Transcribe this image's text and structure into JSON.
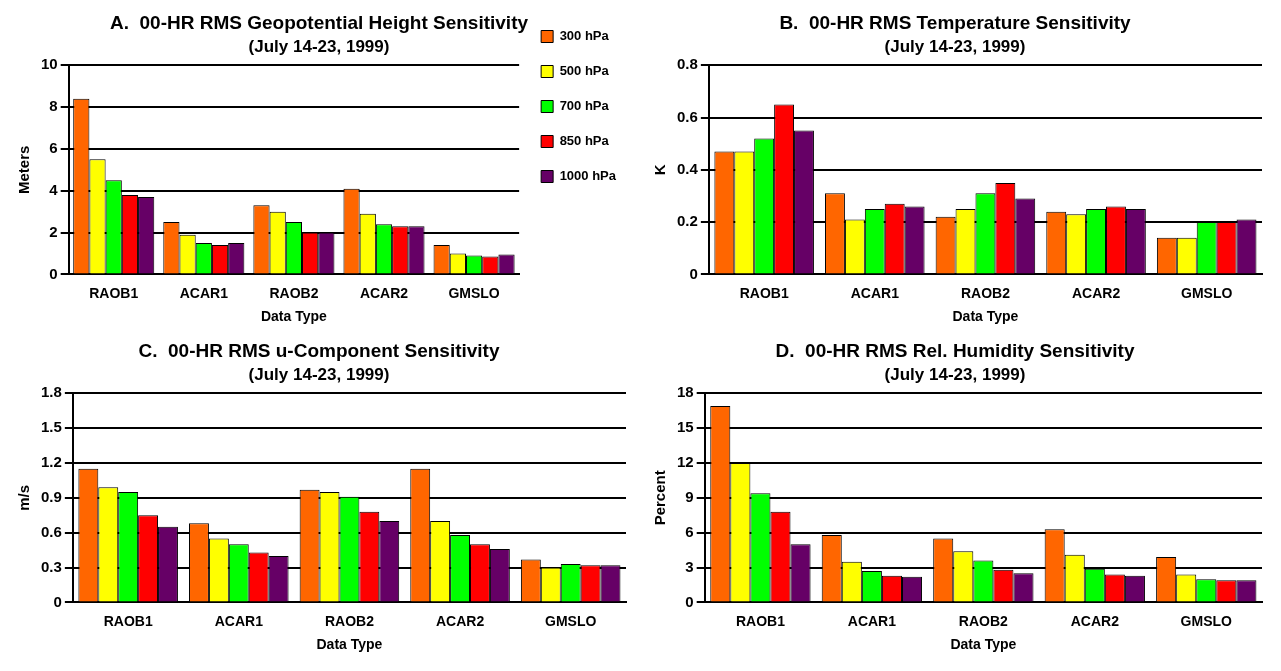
{
  "chart_data": [
    {
      "type": "bar",
      "title": "A.  00-HR RMS Geopotential Height Sensitivity",
      "subtitle": "(July 14-23, 1999)",
      "xlabel": "Data Type",
      "ylabel": "Meters",
      "categories": [
        "RAOB1",
        "ACAR1",
        "RAOB2",
        "ACAR2",
        "GMSLO"
      ],
      "series": [
        {
          "name": "300 hPa",
          "color": "#ff6600",
          "values": [
            8.4,
            2.5,
            3.3,
            4.1,
            1.4
          ]
        },
        {
          "name": "500 hPa",
          "color": "#ffff00",
          "values": [
            5.5,
            1.9,
            3.0,
            2.9,
            1.0
          ]
        },
        {
          "name": "700 hPa",
          "color": "#00ff00",
          "values": [
            4.5,
            1.5,
            2.5,
            2.4,
            0.9
          ]
        },
        {
          "name": "850 hPa",
          "color": "#ff0000",
          "values": [
            3.8,
            1.4,
            2.0,
            2.3,
            0.85
          ]
        },
        {
          "name": "1000 hPa",
          "color": "#660066",
          "values": [
            3.7,
            1.5,
            2.0,
            2.3,
            0.95
          ]
        }
      ],
      "ylim": [
        0,
        10
      ],
      "yticks": [
        0,
        2,
        4,
        6,
        8,
        10
      ],
      "grid": "y",
      "legend": "top right"
    },
    {
      "type": "bar",
      "title": "B.  00-HR RMS Temperature Sensitivity",
      "subtitle": "(July 14-23, 1999)",
      "xlabel": "Data Type",
      "ylabel": "K",
      "categories": [
        "RAOB1",
        "ACAR1",
        "RAOB2",
        "ACAR2",
        "GMSLO"
      ],
      "series": [
        {
          "color": "#ff6600",
          "values": [
            0.47,
            0.31,
            0.22,
            0.24,
            0.14
          ]
        },
        {
          "color": "#ffff00",
          "values": [
            0.47,
            0.21,
            0.25,
            0.23,
            0.14
          ]
        },
        {
          "color": "#00ff00",
          "values": [
            0.52,
            0.25,
            0.31,
            0.25,
            0.2
          ]
        },
        {
          "color": "#ff0000",
          "values": [
            0.65,
            0.27,
            0.35,
            0.26,
            0.2
          ]
        },
        {
          "color": "#660066",
          "values": [
            0.55,
            0.26,
            0.29,
            0.25,
            0.21
          ]
        }
      ],
      "ylim": [
        0,
        0.8
      ],
      "yticks": [
        0,
        0.2,
        0.4,
        0.6,
        0.8
      ],
      "grid": "y"
    },
    {
      "type": "bar",
      "title": "C.  00-HR RMS u-Component Sensitivity",
      "subtitle": "(July 14-23, 1999)",
      "xlabel": "Data Type",
      "ylabel": "m/s",
      "categories": [
        "RAOB1",
        "ACAR1",
        "RAOB2",
        "ACAR2",
        "GMSLO"
      ],
      "series": [
        {
          "color": "#ff6600",
          "values": [
            1.15,
            0.68,
            0.97,
            1.15,
            0.37
          ]
        },
        {
          "color": "#ffff00",
          "values": [
            0.99,
            0.55,
            0.95,
            0.7,
            0.3
          ]
        },
        {
          "color": "#00ff00",
          "values": [
            0.95,
            0.5,
            0.91,
            0.58,
            0.33
          ]
        },
        {
          "color": "#ff0000",
          "values": [
            0.75,
            0.43,
            0.78,
            0.5,
            0.32
          ]
        },
        {
          "color": "#660066",
          "values": [
            0.65,
            0.4,
            0.7,
            0.46,
            0.32
          ]
        }
      ],
      "ylim": [
        0,
        1.8
      ],
      "yticks": [
        0,
        0.3,
        0.6,
        0.9,
        1.2,
        1.5,
        1.8
      ],
      "grid": "y"
    },
    {
      "type": "bar",
      "title": "D.  00-HR RMS Rel. Humidity Sensitivity",
      "subtitle": "(July 14-23, 1999)",
      "xlabel": "Data Type",
      "ylabel": "Percent",
      "categories": [
        "RAOB1",
        "ACAR1",
        "RAOB2",
        "ACAR2",
        "GMSLO"
      ],
      "series": [
        {
          "color": "#ff6600",
          "values": [
            16.9,
            5.8,
            5.5,
            6.3,
            3.9
          ]
        },
        {
          "color": "#ffff00",
          "values": [
            12,
            3.5,
            4.4,
            4.1,
            2.4
          ]
        },
        {
          "color": "#00ff00",
          "values": [
            9.4,
            2.7,
            3.6,
            2.9,
            2.0
          ]
        },
        {
          "color": "#ff0000",
          "values": [
            7.8,
            2.3,
            2.8,
            2.4,
            1.9
          ]
        },
        {
          "color": "#660066",
          "values": [
            5.0,
            2.2,
            2.5,
            2.3,
            1.9
          ]
        }
      ],
      "ylim": [
        0,
        18
      ],
      "yticks": [
        0,
        3,
        6,
        9,
        12,
        15,
        18
      ],
      "grid": "y"
    }
  ]
}
